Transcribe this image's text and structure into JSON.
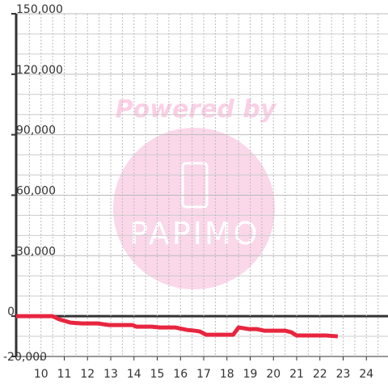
{
  "chart_data": {
    "type": "line",
    "x": [
      8.93,
      10.5,
      10.77,
      11.27,
      11.77,
      12.43,
      12.93,
      13.93,
      14.1,
      14.77,
      15.1,
      15.77,
      15.93,
      16.27,
      16.6,
      16.83,
      17.1,
      18.27,
      18.5,
      18.93,
      19.27,
      19.6,
      20.5,
      20.77,
      21.0,
      22.27,
      22.77
    ],
    "series": [
      {
        "color": "#e8253f",
        "values": [
          0,
          0,
          -1500,
          -3200,
          -3600,
          -3600,
          -4400,
          -4400,
          -5200,
          -5200,
          -5600,
          -5600,
          -6000,
          -6800,
          -7200,
          -7600,
          -9200,
          -9200,
          -5600,
          -6400,
          -6400,
          -7200,
          -7200,
          -8000,
          -9600,
          -9600,
          -10000
        ]
      }
    ],
    "xlim": [
      8.93,
      24.93
    ],
    "ylim": [
      -20000,
      150000
    ],
    "xticks": [
      10,
      11,
      12,
      13,
      14,
      15,
      16,
      17,
      18,
      19,
      20,
      21,
      22,
      23,
      24
    ],
    "yticks": [
      {
        "value": -20000,
        "label": "-20,000"
      },
      0,
      {
        "value": 30000,
        "label": "30,000"
      },
      {
        "value": 60000,
        "label": "60,000"
      },
      {
        "value": 90000,
        "label": "90,000"
      },
      {
        "value": 120000,
        "label": "120,000"
      },
      {
        "value": 150000,
        "label": "150,000"
      }
    ],
    "ygrid": [
      -10000,
      10000,
      20000,
      40000,
      50000,
      70000,
      80000,
      100000,
      110000,
      130000,
      140000
    ],
    "xgrid": [
      9.5,
      10.5,
      11.5,
      12.5,
      13.5,
      14.5,
      15.5,
      16.5,
      17.5,
      18.5,
      19.5,
      20.5,
      21.5,
      22.5,
      23.5,
      24.5
    ],
    "grid": true
  },
  "watermark": {
    "line1": "Powered by",
    "line2": "PAPIMO"
  }
}
